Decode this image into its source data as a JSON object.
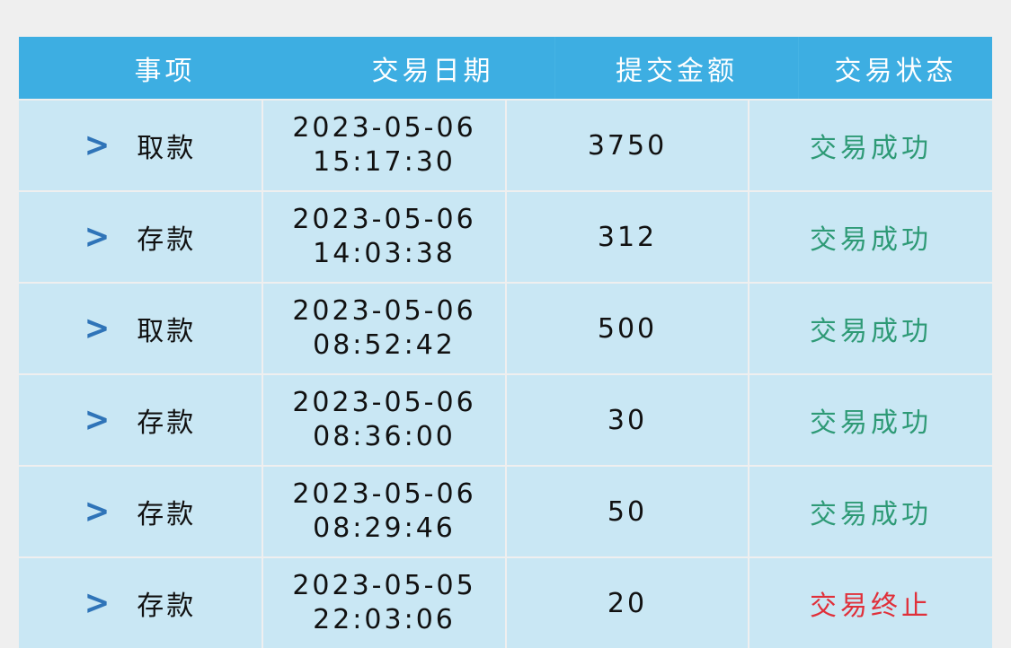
{
  "colors": {
    "header_bg": "#3daee2",
    "row_bg": "#c9e7f4",
    "success": "#2e9a76",
    "terminated": "#e0303a",
    "chevron": "#2f74b8"
  },
  "header": {
    "item": "事项",
    "date": "交易日期",
    "amount": "提交金额",
    "status": "交易状态"
  },
  "rows": [
    {
      "item": "取款",
      "date": "2023-05-06",
      "time": "15:17:30",
      "amount": "3750",
      "status": "交易成功",
      "status_type": "success"
    },
    {
      "item": "存款",
      "date": "2023-05-06",
      "time": "14:03:38",
      "amount": "312",
      "status": "交易成功",
      "status_type": "success"
    },
    {
      "item": "取款",
      "date": "2023-05-06",
      "time": "08:52:42",
      "amount": "500",
      "status": "交易成功",
      "status_type": "success"
    },
    {
      "item": "存款",
      "date": "2023-05-06",
      "time": "08:36:00",
      "amount": "30",
      "status": "交易成功",
      "status_type": "success"
    },
    {
      "item": "存款",
      "date": "2023-05-06",
      "time": "08:29:46",
      "amount": "50",
      "status": "交易成功",
      "status_type": "success"
    },
    {
      "item": "存款",
      "date": "2023-05-05",
      "time": "22:03:06",
      "amount": "20",
      "status": "交易终止",
      "status_type": "terminated"
    }
  ]
}
